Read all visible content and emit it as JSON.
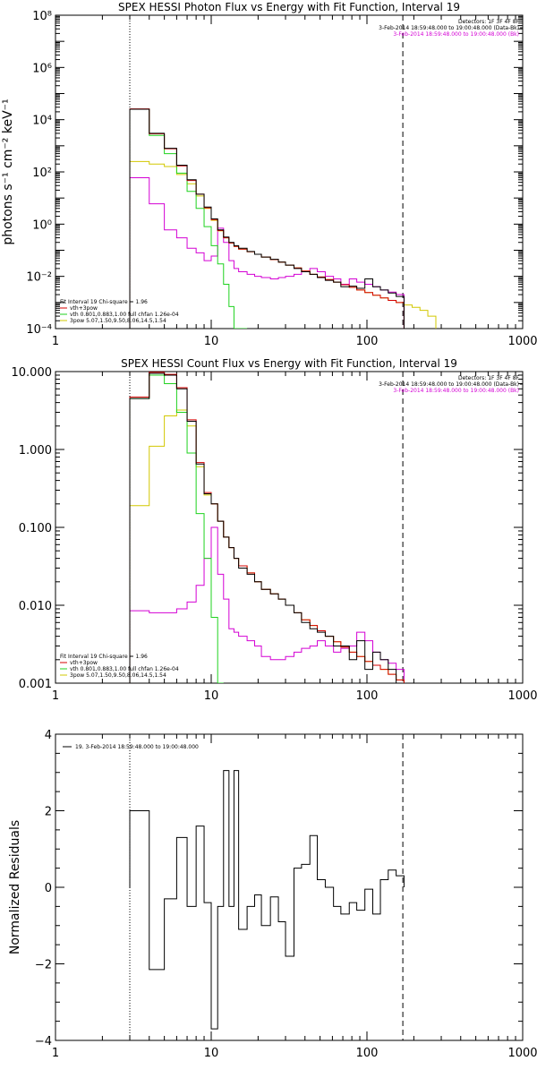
{
  "colors": {
    "data": "#000000",
    "total": "#d40000",
    "thermal": "#1fd21f",
    "powerlaw": "#d2c800",
    "background": "#d400d4",
    "axis": "#000000"
  },
  "markers": {
    "energy_low_kev": 3,
    "energy_high_kev": 170
  },
  "chart_data": [
    {
      "type": "line",
      "title": "SPEX HESSI Photon Flux vs Energy with Fit Function, Interval 19",
      "xlabel": "",
      "ylabel": "photons s⁻¹ cm⁻² keV⁻¹",
      "xscale": "log",
      "yscale": "log",
      "xlim": [
        1,
        1000
      ],
      "ylim": [
        0.0001,
        100000000
      ],
      "xticks": [
        "1",
        "10",
        "100",
        "1000"
      ],
      "yticks": [
        {
          "value": 0.0001,
          "label": "10⁻⁴"
        },
        {
          "value": 0.01,
          "label": "10⁻²"
        },
        {
          "value": 1,
          "label": "10⁰"
        },
        {
          "value": 100,
          "label": "10²"
        },
        {
          "value": 10000,
          "label": "10⁴"
        },
        {
          "value": 1000000,
          "label": "10⁶"
        },
        {
          "value": 100000000,
          "label": "10⁸"
        }
      ],
      "legend_top_right": [
        {
          "text": "Detectors: 1F 3F 4F 8F",
          "color": "#000000"
        },
        {
          "text": "3-Feb-2014 18:59:48.000 to 19:00:48.000 (Data-Bk)",
          "color": "#000000"
        },
        {
          "text": "3-Feb-2014 18:59:48.000 to 19:00:48.000 (Bk)",
          "color": "#d400d4"
        }
      ],
      "legend_bottom_left": [
        {
          "text": "Fit Interval 19   Chi-square = 1.96",
          "color": "#000000"
        },
        {
          "text": "vth+3pow",
          "color": "#d40000"
        },
        {
          "text": "vth 0.801,0.883,1.00  full chfan 1.26e-04",
          "color": "#1fd21f"
        },
        {
          "text": "3pow 5.07,1.50,9.50,8.06,14.5,1.54",
          "color": "#d2c800"
        }
      ],
      "edges": [
        3,
        4,
        5,
        6,
        7,
        8,
        9,
        10,
        11,
        12,
        13,
        14,
        15,
        17,
        19,
        21,
        24,
        27,
        30,
        34,
        38,
        43,
        48,
        54,
        61,
        68,
        77,
        86,
        97,
        109,
        122,
        137,
        154,
        173,
        195,
        219,
        246,
        277
      ],
      "series": [
        {
          "name": "data",
          "color": "#000000",
          "values": [
            25000,
            3000,
            800,
            180,
            50,
            14,
            4.5,
            1.6,
            0.6,
            0.32,
            0.2,
            0.15,
            0.12,
            0.09,
            0.07,
            0.055,
            0.045,
            0.035,
            0.027,
            0.02,
            0.015,
            0.012,
            0.009,
            0.007,
            0.006,
            0.004,
            0.0042,
            0.0035,
            0.008,
            0.004,
            0.003,
            0.0023,
            0.0017
          ]
        },
        {
          "name": "total",
          "color": "#d40000",
          "values": [
            26000,
            2900,
            770,
            170,
            47,
            14,
            4.2,
            1.5,
            0.57,
            0.3,
            0.19,
            0.14,
            0.11,
            0.088,
            0.07,
            0.055,
            0.044,
            0.035,
            0.027,
            0.021,
            0.016,
            0.012,
            0.0095,
            0.0075,
            0.006,
            0.0048,
            0.0038,
            0.003,
            0.0024,
            0.0019,
            0.0015,
            0.0012,
            0.001
          ]
        },
        {
          "name": "thermal",
          "color": "#1fd21f",
          "values": [
            25000,
            2500,
            500,
            90,
            18,
            4,
            0.8,
            0.15,
            0.03,
            0.005,
            0.0007,
            0.0001,
            1e-05
          ]
        },
        {
          "name": "powerlaw",
          "color": "#d2c800",
          "values": [
            250,
            200,
            160,
            80,
            35,
            12,
            4,
            1.4,
            0.55,
            0.3,
            0.19,
            0.14,
            0.11,
            0.088,
            0.07,
            0.055,
            0.044,
            0.035,
            0.027,
            0.021,
            0.016,
            0.012,
            0.0095,
            0.0075,
            0.006,
            0.0048,
            0.0038,
            0.003,
            0.0024,
            0.0019,
            0.0015,
            0.0012,
            0.001,
            0.0008,
            0.00065,
            0.0005,
            0.0003
          ]
        },
        {
          "name": "background",
          "color": "#d400d4",
          "values": [
            60,
            6,
            0.6,
            0.3,
            0.12,
            0.08,
            0.04,
            0.06,
            0.7,
            0.2,
            0.04,
            0.02,
            0.015,
            0.012,
            0.01,
            0.009,
            0.008,
            0.009,
            0.01,
            0.012,
            0.015,
            0.02,
            0.015,
            0.01,
            0.008,
            0.005,
            0.008,
            0.006,
            0.005,
            0.004,
            0.003,
            0.0025,
            0.002
          ]
        }
      ]
    },
    {
      "type": "line",
      "title": "SPEX HESSI Count Flux vs Energy with Fit Function, Interval 19",
      "xlabel": "",
      "ylabel": "",
      "xscale": "log",
      "yscale": "log",
      "xlim": [
        1,
        1000
      ],
      "ylim": [
        0.001,
        10
      ],
      "xticks": [
        "1",
        "10",
        "100",
        "1000"
      ],
      "yticks": [
        {
          "value": 0.001,
          "label": "0.001"
        },
        {
          "value": 0.01,
          "label": "0.010"
        },
        {
          "value": 0.1,
          "label": "0.100"
        },
        {
          "value": 1,
          "label": "1.000"
        },
        {
          "value": 10,
          "label": "10.000"
        }
      ],
      "legend_top_right": [
        {
          "text": "Detectors: 1F 3F 4F 8F",
          "color": "#000000"
        },
        {
          "text": "3-Feb-2014 18:59:48.000 to 19:00:48.000 (Data-Bk)",
          "color": "#000000"
        },
        {
          "text": "3-Feb-2014 18:59:48.000 to 19:00:48.000 (Bk)",
          "color": "#d400d4"
        }
      ],
      "legend_bottom_left": [
        {
          "text": "Fit Interval 19   Chi-square = 1.96",
          "color": "#000000"
        },
        {
          "text": "vth+3pow",
          "color": "#d40000"
        },
        {
          "text": "vth 0.801,0.883,1.00  full chfan 1.26e-04",
          "color": "#1fd21f"
        },
        {
          "text": "3pow 5.07,1.50,9.50,8.06,14.5,1.54",
          "color": "#d2c800"
        }
      ],
      "edges": [
        3,
        4,
        5,
        6,
        7,
        8,
        9,
        10,
        11,
        12,
        13,
        14,
        15,
        17,
        19,
        21,
        24,
        27,
        30,
        34,
        38,
        43,
        48,
        54,
        61,
        68,
        77,
        86,
        97,
        109,
        122,
        137,
        154,
        173
      ],
      "series": [
        {
          "name": "data",
          "color": "#000000",
          "values": [
            4.5,
            9.5,
            9,
            6,
            2.3,
            0.65,
            0.27,
            0.2,
            0.12,
            0.075,
            0.055,
            0.04,
            0.03,
            0.025,
            0.02,
            0.016,
            0.014,
            0.012,
            0.01,
            0.008,
            0.006,
            0.005,
            0.0045,
            0.004,
            0.003,
            0.003,
            0.002,
            0.0035,
            0.0015,
            0.0025,
            0.002,
            0.0015,
            0.001
          ]
        },
        {
          "name": "total",
          "color": "#d40000",
          "values": [
            4.7,
            9.8,
            9.2,
            6.2,
            2.4,
            0.68,
            0.28,
            0.2,
            0.12,
            0.075,
            0.055,
            0.04,
            0.032,
            0.026,
            0.02,
            0.016,
            0.014,
            0.012,
            0.01,
            0.008,
            0.0065,
            0.0055,
            0.0047,
            0.004,
            0.0034,
            0.0029,
            0.0025,
            0.0022,
            0.0019,
            0.0017,
            0.0015,
            0.0013,
            0.0011
          ]
        },
        {
          "name": "thermal",
          "color": "#1fd21f",
          "values": [
            4.5,
            9,
            7,
            3,
            0.9,
            0.15,
            0.04,
            0.007,
            0.001
          ]
        },
        {
          "name": "powerlaw",
          "color": "#d2c800",
          "values": [
            0.19,
            1.1,
            2.7,
            3.2,
            2.0,
            0.6,
            0.26,
            0.2,
            0.12,
            0.075,
            0.055,
            0.04,
            0.032,
            0.026,
            0.02,
            0.016,
            0.014,
            0.012,
            0.01,
            0.008,
            0.0065,
            0.0055,
            0.0047,
            0.004,
            0.0034,
            0.0029,
            0.0025,
            0.0022,
            0.0019,
            0.0017,
            0.0015,
            0.0013,
            0.0011
          ]
        },
        {
          "name": "background",
          "color": "#d400d4",
          "values": [
            0.0085,
            0.008,
            0.008,
            0.009,
            0.011,
            0.018,
            0.04,
            0.1,
            0.025,
            0.012,
            0.005,
            0.0045,
            0.004,
            0.0035,
            0.003,
            0.0022,
            0.002,
            0.002,
            0.0022,
            0.0025,
            0.0028,
            0.003,
            0.0035,
            0.003,
            0.0025,
            0.0028,
            0.003,
            0.0045,
            0.0035,
            0.0025,
            0.002,
            0.0018,
            0.0015
          ]
        }
      ]
    },
    {
      "type": "line",
      "title": "",
      "xlabel": "",
      "ylabel": "Normalized Residuals",
      "xscale": "log",
      "yscale": "linear",
      "xlim": [
        1,
        1000
      ],
      "ylim": [
        -4,
        4
      ],
      "xticks": [
        "1",
        "10",
        "100",
        "1000"
      ],
      "yticks": [
        {
          "value": -4,
          "label": "−4"
        },
        {
          "value": -2,
          "label": "−2"
        },
        {
          "value": 0,
          "label": "0"
        },
        {
          "value": 2,
          "label": "2"
        },
        {
          "value": 4,
          "label": "4"
        }
      ],
      "legend_top_left": [
        {
          "text": "19.  3-Feb-2014 18:59:48.000 to 19:00:48.000",
          "color": "#000000"
        }
      ],
      "edges": [
        3,
        4,
        5,
        6,
        7,
        8,
        9,
        10,
        11,
        12,
        13,
        14,
        15,
        17,
        19,
        21,
        24,
        27,
        30,
        34,
        38,
        43,
        48,
        54,
        61,
        68,
        77,
        86,
        97,
        109,
        122,
        137,
        154,
        173
      ],
      "series": [
        {
          "name": "residuals",
          "color": "#000000",
          "values": [
            2.0,
            -2.15,
            -0.3,
            1.3,
            -0.5,
            1.6,
            -0.4,
            -3.7,
            -0.5,
            3.05,
            -0.5,
            3.05,
            -1.1,
            -0.5,
            -0.2,
            -1.0,
            -0.25,
            -0.9,
            -1.8,
            0.5,
            0.6,
            1.35,
            0.2,
            0.0,
            -0.5,
            -0.7,
            -0.4,
            -0.6,
            -0.05,
            -0.7,
            0.2,
            0.45,
            0.3,
            0.3
          ]
        }
      ]
    }
  ]
}
